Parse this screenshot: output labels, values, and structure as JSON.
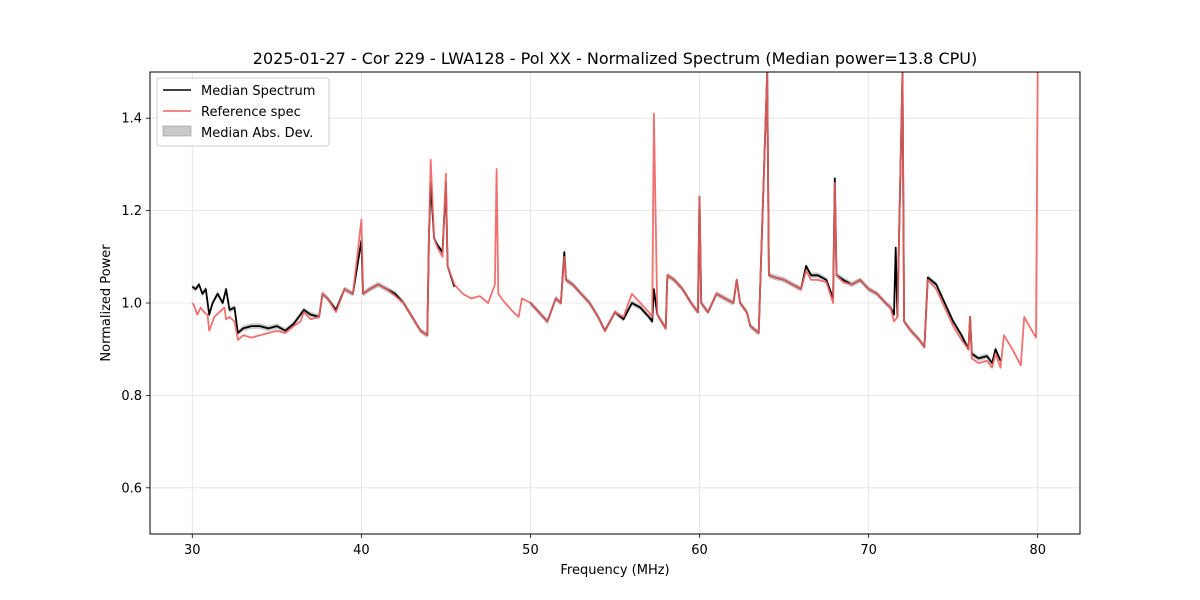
{
  "chart_data": {
    "type": "line",
    "title": "2025-01-27 - Cor 229 - LWA128 - Pol XX - Normalized Spectrum (Median power=13.8 CPU)",
    "xlabel": "Frequency (MHz)",
    "ylabel": "Normalized Power",
    "xlim": [
      27.5,
      82.5
    ],
    "ylim": [
      0.5,
      1.5
    ],
    "xticks": [
      30,
      40,
      50,
      60,
      70,
      80
    ],
    "yticks": [
      0.6,
      0.8,
      1.0,
      1.2,
      1.4
    ],
    "xtick_labels": [
      "30",
      "40",
      "50",
      "60",
      "70",
      "80"
    ],
    "ytick_labels": [
      "0.6",
      "0.8",
      "1.0",
      "1.2",
      "1.4"
    ],
    "grid": true,
    "legend_position": "top-left",
    "colors": {
      "median": "#000000",
      "reference": "#f16060",
      "band": "#bbbbbb",
      "grid": "#e0e0e0"
    },
    "legend": [
      {
        "label": "Median Spectrum",
        "kind": "line",
        "color": "#000000"
      },
      {
        "label": "Reference spec",
        "kind": "line",
        "color": "#f16060"
      },
      {
        "label": "Median Abs. Dev.",
        "kind": "patch",
        "color": "#bbbbbb"
      }
    ],
    "series": [
      {
        "name": "Median Spectrum",
        "color": "#000000",
        "segments": [
          {
            "x": [
              30.0,
              30.2,
              30.4,
              30.6,
              30.8,
              31.0,
              31.2,
              31.5,
              31.8,
              32.0,
              32.2,
              32.5,
              32.7,
              33.0,
              33.5,
              34.0,
              34.5,
              35.0,
              35.5,
              36.0,
              36.4,
              36.6,
              37.0,
              37.5,
              37.7,
              38.0,
              38.5,
              39.0,
              39.5,
              40.0,
              40.1,
              40.5,
              41.0,
              41.5,
              42.0,
              42.5,
              43.0,
              43.5,
              43.9,
              44.0,
              44.1,
              44.3,
              44.5,
              44.8,
              45.0,
              45.1,
              45.5
            ],
            "y": [
              1.035,
              1.03,
              1.04,
              1.02,
              1.03,
              0.975,
              1.0,
              1.02,
              1.0,
              1.03,
              0.985,
              0.99,
              0.935,
              0.945,
              0.95,
              0.95,
              0.945,
              0.95,
              0.94,
              0.955,
              0.975,
              0.985,
              0.975,
              0.97,
              1.02,
              1.01,
              0.985,
              1.03,
              1.02,
              1.135,
              1.02,
              1.03,
              1.04,
              1.03,
              1.02,
              1.0,
              0.97,
              0.94,
              0.93,
              1.15,
              1.26,
              1.14,
              1.125,
              1.11,
              1.26,
              1.08,
              1.035
            ]
          },
          {
            "x": [
              50.0,
              50.5,
              51.0,
              51.5,
              51.8,
              52.0,
              52.1,
              52.5,
              53.0,
              53.5,
              54.0,
              54.4,
              55.0,
              55.5,
              56.0,
              56.5,
              57.0,
              57.2,
              57.3,
              57.5,
              58.0,
              58.1,
              58.5,
              59.0,
              59.5,
              59.9,
              60.0,
              60.1,
              60.5,
              61.0,
              61.5,
              62.0,
              62.2,
              62.4,
              62.8,
              63.0,
              63.5,
              64.0,
              64.1,
              64.5,
              65.0,
              65.5,
              66.0,
              66.3,
              66.6,
              67.0,
              67.5,
              67.9,
              68.0,
              68.1,
              68.5,
              69.0,
              69.5,
              70.0,
              70.5,
              71.0,
              71.3,
              71.5,
              71.6,
              71.7,
              72.0,
              72.1,
              72.5,
              73.0,
              73.3,
              73.5,
              74.0,
              74.5,
              75.0,
              75.5,
              75.9,
              76.0,
              76.1,
              76.5,
              77.0,
              77.3,
              77.5,
              77.8
            ],
            "y": [
              1.0,
              0.98,
              0.96,
              1.01,
              1.0,
              1.11,
              1.05,
              1.04,
              1.02,
              1.0,
              0.97,
              0.94,
              0.98,
              0.965,
              1.0,
              0.99,
              0.97,
              0.96,
              1.03,
              0.975,
              0.945,
              1.06,
              1.05,
              1.03,
              1.0,
              0.98,
              1.23,
              1.0,
              0.98,
              1.02,
              1.01,
              1.0,
              1.05,
              1.0,
              0.98,
              0.95,
              0.935,
              1.5,
              1.06,
              1.055,
              1.05,
              1.04,
              1.03,
              1.08,
              1.06,
              1.06,
              1.05,
              1.01,
              1.27,
              1.06,
              1.05,
              1.04,
              1.05,
              1.03,
              1.02,
              1.0,
              0.99,
              0.975,
              1.12,
              0.97,
              1.5,
              0.96,
              0.94,
              0.92,
              0.905,
              1.055,
              1.04,
              1.0,
              0.96,
              0.93,
              0.9,
              0.97,
              0.89,
              0.88,
              0.885,
              0.87,
              0.9,
              0.875
            ]
          }
        ]
      },
      {
        "name": "Reference spec",
        "color": "#f16060",
        "segments": [
          {
            "x": [
              30.0,
              30.1,
              30.3,
              30.5,
              30.7,
              30.9,
              31.0,
              31.3,
              31.6,
              31.9,
              32.0,
              32.2,
              32.5,
              32.7,
              33.0,
              33.5,
              34.0,
              34.5,
              35.0,
              35.5,
              36.0,
              36.4,
              36.6,
              37.0,
              37.5,
              37.7,
              38.0,
              38.5,
              39.0,
              39.5,
              40.0,
              40.1,
              40.5,
              41.0,
              41.5,
              42.0,
              42.5,
              43.0,
              43.5,
              43.9,
              44.0,
              44.1,
              44.3,
              44.5,
              44.8,
              45.0,
              45.1,
              45.5,
              46.0,
              46.5,
              47.0,
              47.5,
              47.9,
              48.0,
              48.1,
              48.5,
              49.0,
              49.3,
              49.5,
              50.0,
              50.5,
              51.0,
              51.5,
              51.8,
              52.0,
              52.1,
              52.5,
              53.0,
              53.5,
              54.0,
              54.4,
              55.0,
              55.5,
              56.0,
              56.5,
              57.0,
              57.2,
              57.3,
              57.5,
              58.0,
              58.1,
              58.5,
              59.0,
              59.5,
              59.9,
              60.0,
              60.1,
              60.5,
              61.0,
              61.5,
              62.0,
              62.2,
              62.4,
              62.8,
              63.0,
              63.5,
              64.0,
              64.1,
              64.5,
              65.0,
              65.5,
              66.0,
              66.3,
              66.6,
              67.0,
              67.5,
              67.9,
              68.0,
              68.1,
              68.5,
              69.0,
              69.5,
              70.0,
              70.5,
              71.0,
              71.3,
              71.5,
              71.7,
              72.0,
              72.1,
              72.5,
              73.0,
              73.3,
              73.5,
              74.0,
              74.5,
              75.0,
              75.5,
              75.9,
              76.0,
              76.1,
              76.5,
              77.0,
              77.3,
              77.5,
              77.8,
              78.0,
              78.5,
              79.0,
              79.2,
              79.5,
              79.9,
              80.0
            ],
            "y": [
              1.0,
              0.995,
              0.975,
              0.99,
              0.98,
              0.975,
              0.94,
              0.97,
              0.98,
              0.99,
              0.965,
              0.97,
              0.96,
              0.92,
              0.93,
              0.925,
              0.93,
              0.935,
              0.94,
              0.935,
              0.95,
              0.96,
              0.98,
              0.965,
              0.97,
              1.02,
              1.01,
              0.98,
              1.03,
              1.02,
              1.18,
              1.02,
              1.03,
              1.04,
              1.03,
              1.015,
              1.0,
              0.97,
              0.94,
              0.93,
              1.15,
              1.31,
              1.14,
              1.12,
              1.1,
              1.28,
              1.08,
              1.04,
              1.02,
              1.01,
              1.015,
              1.0,
              1.04,
              1.29,
              1.02,
              1.0,
              0.98,
              0.97,
              1.01,
              1.0,
              0.98,
              0.96,
              1.01,
              1.0,
              1.1,
              1.05,
              1.04,
              1.02,
              1.0,
              0.97,
              0.94,
              0.98,
              0.97,
              1.02,
              1.0,
              0.98,
              0.97,
              1.41,
              0.975,
              0.945,
              1.06,
              1.05,
              1.03,
              1.0,
              0.98,
              1.23,
              1.0,
              0.98,
              1.02,
              1.01,
              1.0,
              1.05,
              1.0,
              0.98,
              0.95,
              0.935,
              1.5,
              1.06,
              1.055,
              1.05,
              1.04,
              1.03,
              1.07,
              1.05,
              1.05,
              1.045,
              1.0,
              1.26,
              1.06,
              1.045,
              1.04,
              1.05,
              1.03,
              1.02,
              1.0,
              0.99,
              0.96,
              0.97,
              1.5,
              0.96,
              0.94,
              0.92,
              0.905,
              1.05,
              1.03,
              0.99,
              0.95,
              0.92,
              0.9,
              0.97,
              0.88,
              0.87,
              0.875,
              0.86,
              0.89,
              0.86,
              0.93,
              0.9,
              0.865,
              0.97,
              0.95,
              0.925,
              1.5
            ]
          }
        ]
      }
    ]
  }
}
